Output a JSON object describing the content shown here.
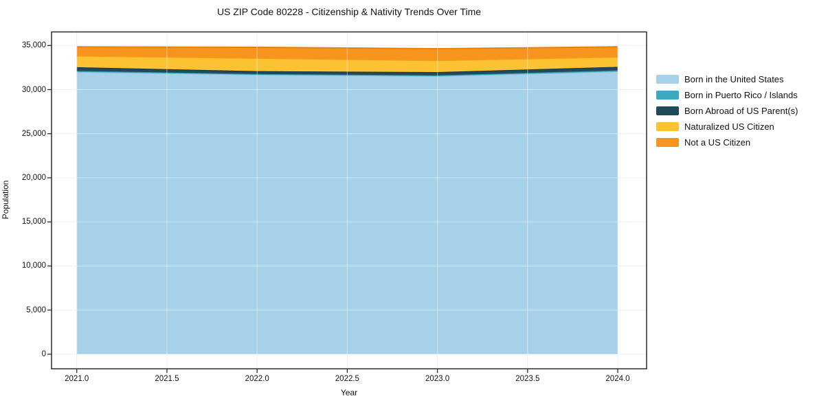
{
  "chart_data": {
    "type": "area",
    "stacked": true,
    "title": "US ZIP Code 80228 - Citizenship & Nativity Trends Over Time",
    "xlabel": "Year",
    "ylabel": "Population",
    "x": [
      2021,
      2022,
      2023,
      2024
    ],
    "series": [
      {
        "name": "Born in the United States",
        "color": "#a7d1e8",
        "edge_color": "#8cc1dc",
        "values": [
          32000,
          31680,
          31530,
          32050
        ]
      },
      {
        "name": "Born in Puerto Rico / Islands",
        "color": "#3ea8c1",
        "edge_color": "#2e94ab",
        "values": [
          120,
          85,
          90,
          130
        ]
      },
      {
        "name": "Born Abroad of US Parent(s)",
        "color": "#1f4a5a",
        "edge_color": "#16333f",
        "values": [
          420,
          330,
          370,
          400
        ]
      },
      {
        "name": "Naturalized US Citizen",
        "color": "#fcc233",
        "edge_color": "#eead13",
        "values": [
          1260,
          1450,
          1290,
          1100
        ]
      },
      {
        "name": "Not a US Citizen",
        "color": "#f7941e",
        "edge_color": "#e07f0c",
        "values": [
          1050,
          1250,
          1360,
          1170
        ]
      }
    ],
    "legend": [
      "Born in the United States",
      "Born in Puerto Rico / Islands",
      "Born Abroad of US Parent(s)",
      "Naturalized US Citizen",
      "Not a US Citizen"
    ],
    "legend_position": "right",
    "xticks": [
      2021.0,
      2021.5,
      2022.0,
      2022.5,
      2023.0,
      2023.5,
      2024.0
    ],
    "xtick_labels": [
      "2021.0",
      "2021.5",
      "2022.0",
      "2022.5",
      "2023.0",
      "2023.5",
      "2024.0"
    ],
    "yticks": [
      0,
      5000,
      10000,
      15000,
      20000,
      25000,
      30000,
      35000
    ],
    "ytick_labels": [
      "0",
      "5,000",
      "10,000",
      "15,000",
      "20,000",
      "25,000",
      "30,000",
      "35,000"
    ],
    "xlim": [
      2020.86,
      2024.16
    ],
    "ylim": [
      -1660,
      36540
    ],
    "grid": true,
    "colors": {
      "grid": "#e7e7e7",
      "grid_overlay": "rgba(255,255,255,0.4)",
      "axis": "#2b2b2b",
      "text": "#111111"
    }
  }
}
